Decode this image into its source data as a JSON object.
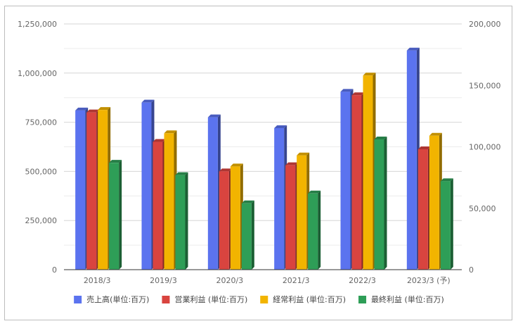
{
  "chart_data": {
    "type": "bar",
    "style": "3d-clustered",
    "categories": [
      "2018/3",
      "2019/3",
      "2020/3",
      "2021/3",
      "2022/3",
      "2023/3 (予)"
    ],
    "series": [
      {
        "name": "売上高(単位:百万)",
        "axis": "left",
        "color": "#5b73ef",
        "values": [
          810000,
          850000,
          775000,
          720000,
          905000,
          1115000
        ]
      },
      {
        "name": "営業利益 (単位:百万)",
        "axis": "right",
        "color": "#d9443f",
        "values": [
          128000,
          104000,
          80000,
          85000,
          142000,
          98000
        ]
      },
      {
        "name": "経常利益 (単位:百万)",
        "axis": "right",
        "color": "#f2b400",
        "values": [
          130000,
          111000,
          84000,
          93000,
          158000,
          109000
        ]
      },
      {
        "name": "最終利益 (単位:百万)",
        "axis": "right",
        "color": "#2e9e57",
        "values": [
          87000,
          77000,
          54000,
          62000,
          106000,
          72000
        ]
      }
    ],
    "left_axis": {
      "ylim": [
        0,
        1250000
      ],
      "ticks": [
        "0",
        "250,000",
        "500,000",
        "750,000",
        "1,000,000",
        "1,250,000"
      ]
    },
    "right_axis": {
      "ylim": [
        0,
        200000
      ],
      "ticks": [
        "0",
        "50,000",
        "100,000",
        "150,000",
        "200,000"
      ]
    },
    "grid": true,
    "legend_position": "bottom",
    "title": "",
    "xlabel": "",
    "ylabel": ""
  }
}
